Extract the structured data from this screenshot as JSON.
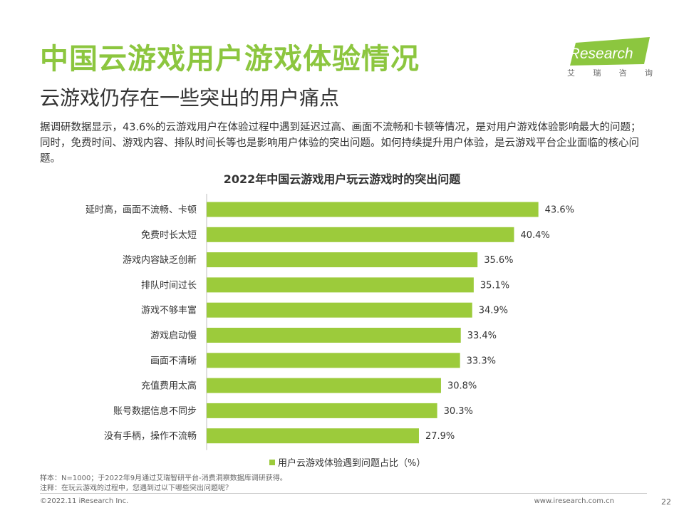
{
  "header": {
    "title": "中国云游戏用户游戏体验情况",
    "subtitle": "云游戏仍存在一些突出的用户痛点"
  },
  "logo": {
    "brand": "iResearch",
    "tagline": [
      "艾",
      "瑞",
      "咨",
      "询"
    ]
  },
  "paragraph": "据调研数据显示，43.6%的云游戏用户在体验过程中遇到延迟过高、画面不流畅和卡顿等情况，是对用户游戏体验影响最大的问题；同时，免费时间、游戏内容、排队时间长等也是影响用户体验的突出问题。如何持续提升用户体验，是云游戏平台企业面临的核心问题。",
  "chart_data": {
    "type": "bar",
    "orientation": "horizontal",
    "title": "2022年中国云游戏用户玩云游戏时的突出问题",
    "categories": [
      "延时高，画面不流畅、卡顿",
      "免费时长太短",
      "游戏内容缺乏创新",
      "排队时间过长",
      "游戏不够丰富",
      "游戏启动慢",
      "画面不清晰",
      "充值费用太高",
      "账号数据信息不同步",
      "没有手柄，操作不流畅"
    ],
    "values": [
      43.6,
      40.4,
      35.6,
      35.1,
      34.9,
      33.4,
      33.3,
      30.8,
      30.3,
      27.9
    ],
    "value_labels": [
      "43.6%",
      "40.4%",
      "35.6%",
      "35.1%",
      "34.9%",
      "33.4%",
      "33.3%",
      "30.8%",
      "30.3%",
      "27.9%"
    ],
    "series": [
      {
        "name": "用户云游戏体验遇到问题占比（%）"
      }
    ],
    "xlim": [
      0,
      50
    ],
    "bar_color": "#9ccb3b",
    "grid": false,
    "legend_position": "bottom"
  },
  "notes": {
    "sample": "样本：N=1000；于2022年9月通过艾瑞智研平台-消费洞察数据库调研获得。",
    "note": "注释：在玩云游戏的过程中，您遇到过以下哪些突出问题呢？"
  },
  "footer": {
    "copyright": "©2022.11 iResearch Inc.",
    "website": "www.iresearch.com.cn",
    "page": "22"
  },
  "colors": {
    "title_green": "#8cc63f",
    "bar_green": "#9ccb3b"
  }
}
